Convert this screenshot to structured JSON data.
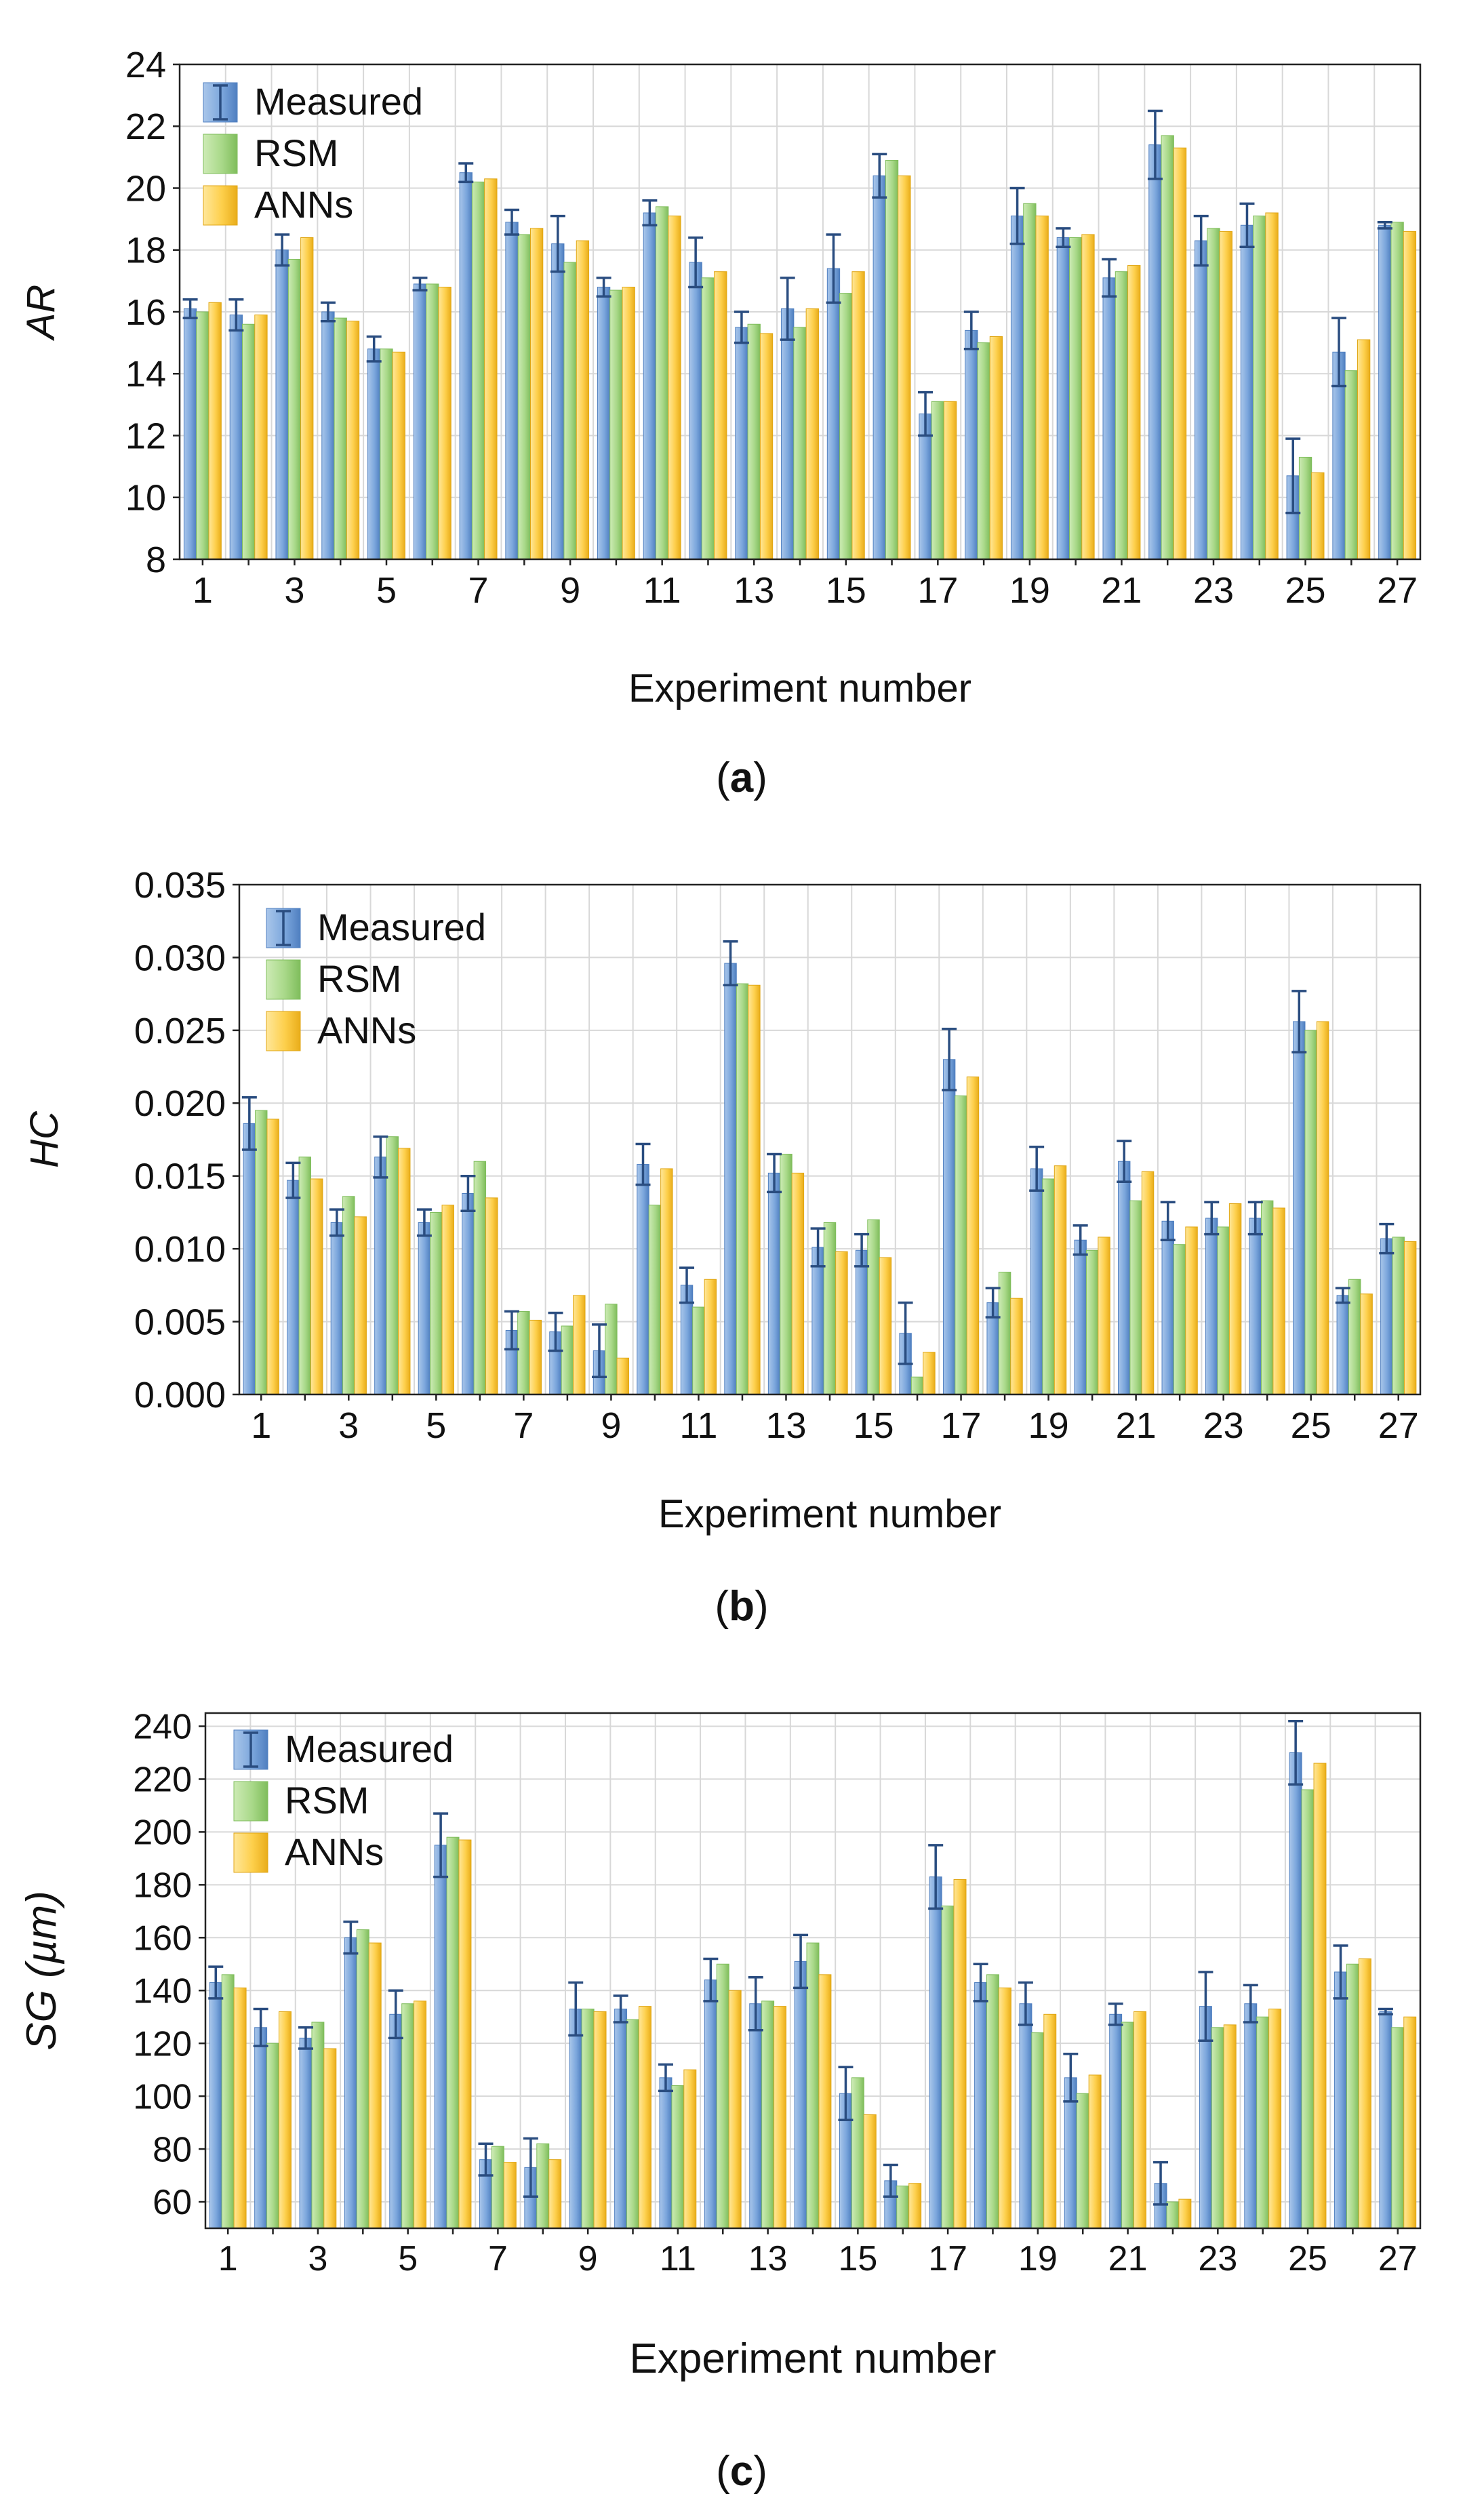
{
  "panels": [
    {
      "caption": "a",
      "chart_data": {
        "type": "bar",
        "title": "",
        "xlabel": "Experiment number",
        "ylabel": "AR",
        "ylim": [
          8,
          24
        ],
        "yticks": [
          8,
          10,
          12,
          14,
          16,
          18,
          20,
          22,
          24
        ],
        "ytick_labels": [
          "8",
          "10",
          "12",
          "14",
          "16",
          "18",
          "20",
          "22",
          "24"
        ],
        "grid": true,
        "legend": "top-left",
        "categories": [
          "1",
          "2",
          "3",
          "4",
          "5",
          "6",
          "7",
          "8",
          "9",
          "10",
          "11",
          "12",
          "13",
          "14",
          "15",
          "16",
          "17",
          "18",
          "19",
          "20",
          "21",
          "22",
          "23",
          "24",
          "25",
          "26",
          "27"
        ],
        "xtick_labels": [
          "1",
          "",
          "3",
          "",
          "5",
          "",
          "7",
          "",
          "9",
          "",
          "11",
          "",
          "13",
          "",
          "15",
          "",
          "17",
          "",
          "19",
          "",
          "21",
          "",
          "23",
          "",
          "25",
          "",
          "27"
        ],
        "series": [
          {
            "name": "Measured",
            "values": [
              16.1,
              15.9,
              18.0,
              16.0,
              14.8,
              16.9,
              20.5,
              18.9,
              18.2,
              16.8,
              19.2,
              17.6,
              15.5,
              16.1,
              17.4,
              20.4,
              12.7,
              15.4,
              19.1,
              18.4,
              17.1,
              21.4,
              18.3,
              18.8,
              10.7,
              14.7,
              18.8
            ],
            "errors": [
              0.3,
              0.5,
              0.5,
              0.3,
              0.4,
              0.2,
              0.3,
              0.4,
              0.9,
              0.3,
              0.4,
              0.8,
              0.5,
              1.0,
              1.1,
              0.7,
              0.7,
              0.6,
              0.9,
              0.3,
              0.6,
              1.1,
              0.8,
              0.7,
              1.2,
              1.1,
              0.1
            ]
          },
          {
            "name": "RSM",
            "values": [
              16.0,
              15.6,
              17.7,
              15.8,
              14.8,
              16.9,
              20.2,
              18.5,
              17.6,
              16.7,
              19.4,
              17.1,
              15.6,
              15.5,
              16.6,
              20.9,
              13.1,
              15.0,
              19.5,
              18.4,
              17.3,
              21.7,
              18.7,
              19.1,
              11.3,
              14.1,
              18.9
            ]
          },
          {
            "name": "ANNs",
            "values": [
              16.3,
              15.9,
              18.4,
              15.7,
              14.7,
              16.8,
              20.3,
              18.7,
              18.3,
              16.8,
              19.1,
              17.3,
              15.3,
              16.1,
              17.3,
              20.4,
              13.1,
              15.2,
              19.1,
              18.5,
              17.5,
              21.3,
              18.6,
              19.2,
              10.8,
              15.1,
              18.6
            ]
          }
        ]
      }
    },
    {
      "caption": "b",
      "chart_data": {
        "type": "bar",
        "title": "",
        "xlabel": "Experiment number",
        "ylabel": "HC",
        "ylim": [
          0,
          0.035
        ],
        "yticks": [
          0,
          0.005,
          0.01,
          0.015,
          0.02,
          0.025,
          0.03,
          0.035
        ],
        "ytick_labels": [
          "0.000",
          "0.005",
          "0.010",
          "0.015",
          "0.020",
          "0.025",
          "0.030",
          "0.035"
        ],
        "grid": true,
        "legend": "top-left",
        "categories": [
          "1",
          "2",
          "3",
          "4",
          "5",
          "6",
          "7",
          "8",
          "9",
          "10",
          "11",
          "12",
          "13",
          "14",
          "15",
          "16",
          "17",
          "18",
          "19",
          "20",
          "21",
          "22",
          "23",
          "24",
          "25",
          "26",
          "27"
        ],
        "xtick_labels": [
          "1",
          "",
          "3",
          "",
          "5",
          "",
          "7",
          "",
          "9",
          "",
          "11",
          "",
          "13",
          "",
          "15",
          "",
          "17",
          "",
          "19",
          "",
          "21",
          "",
          "23",
          "",
          "25",
          "",
          "27"
        ],
        "series": [
          {
            "name": "Measured",
            "values": [
              0.0186,
              0.0147,
              0.0118,
              0.0163,
              0.0118,
              0.0138,
              0.0044,
              0.0043,
              0.003,
              0.0158,
              0.0075,
              0.0296,
              0.0152,
              0.0101,
              0.0099,
              0.0042,
              0.023,
              0.0063,
              0.0155,
              0.0106,
              0.016,
              0.0119,
              0.0121,
              0.0121,
              0.0256,
              0.0068,
              0.0107
            ],
            "errors": [
              0.0018,
              0.0012,
              0.0009,
              0.0014,
              0.0009,
              0.0012,
              0.0013,
              0.0013,
              0.0018,
              0.0014,
              0.0012,
              0.0015,
              0.0013,
              0.0013,
              0.0011,
              0.0021,
              0.0021,
              0.001,
              0.0015,
              0.001,
              0.0014,
              0.0013,
              0.0011,
              0.0011,
              0.0021,
              0.0005,
              0.001
            ]
          },
          {
            "name": "RSM",
            "values": [
              0.0195,
              0.0163,
              0.0136,
              0.0177,
              0.0125,
              0.016,
              0.0057,
              0.0047,
              0.0062,
              0.013,
              0.006,
              0.0282,
              0.0165,
              0.0118,
              0.012,
              0.0012,
              0.0205,
              0.0084,
              0.0148,
              0.0099,
              0.0133,
              0.0103,
              0.0115,
              0.0133,
              0.025,
              0.0079,
              0.0108
            ]
          },
          {
            "name": "ANNs",
            "values": [
              0.0189,
              0.0148,
              0.0122,
              0.0169,
              0.013,
              0.0135,
              0.0051,
              0.0068,
              0.0025,
              0.0155,
              0.0079,
              0.0281,
              0.0152,
              0.0098,
              0.0094,
              0.0029,
              0.0218,
              0.0066,
              0.0157,
              0.0108,
              0.0153,
              0.0115,
              0.0131,
              0.0128,
              0.0256,
              0.0069,
              0.0105
            ]
          }
        ]
      }
    },
    {
      "caption": "c",
      "chart_data": {
        "type": "bar",
        "title": "",
        "xlabel": "Experiment number",
        "ylabel": "SG (µm)",
        "ylim": [
          50,
          245
        ],
        "yticks": [
          60,
          80,
          100,
          120,
          140,
          160,
          180,
          200,
          220,
          240
        ],
        "ytick_labels": [
          "60",
          "80",
          "100",
          "120",
          "140",
          "160",
          "180",
          "200",
          "220",
          "240"
        ],
        "grid": true,
        "legend": "top-left",
        "categories": [
          "1",
          "2",
          "3",
          "4",
          "5",
          "6",
          "7",
          "8",
          "9",
          "10",
          "11",
          "12",
          "13",
          "14",
          "15",
          "16",
          "17",
          "18",
          "19",
          "20",
          "21",
          "22",
          "23",
          "24",
          "25",
          "26",
          "27"
        ],
        "xtick_labels": [
          "1",
          "",
          "3",
          "",
          "5",
          "",
          "7",
          "",
          "9",
          "",
          "11",
          "",
          "13",
          "",
          "15",
          "",
          "17",
          "",
          "19",
          "",
          "21",
          "",
          "23",
          "",
          "25",
          "",
          "27"
        ],
        "series": [
          {
            "name": "Measured",
            "values": [
              143,
              126,
              122,
              160,
              131,
              195,
              76,
              73,
              133,
              133,
              107,
              144,
              135,
              151,
              101,
              68,
              183,
              143,
              135,
              107,
              131,
              67,
              134,
              135,
              230,
              147,
              132
            ],
            "errors": [
              6,
              7,
              4,
              6,
              9,
              12,
              6,
              11,
              10,
              5,
              5,
              8,
              10,
              10,
              10,
              6,
              12,
              7,
              8,
              9,
              4,
              8,
              13,
              7,
              12,
              10,
              1
            ]
          },
          {
            "name": "RSM",
            "values": [
              146,
              120,
              128,
              163,
              135,
              198,
              81,
              82,
              133,
              129,
              104,
              150,
              136,
              158,
              107,
              66,
              172,
              146,
              124,
              101,
              128,
              60,
              126,
              130,
              216,
              150,
              126
            ]
          },
          {
            "name": "ANNs",
            "values": [
              141,
              132,
              118,
              158,
              136,
              197,
              75,
              76,
              132,
              134,
              110,
              140,
              134,
              146,
              93,
              67,
              182,
              141,
              131,
              108,
              132,
              61,
              127,
              133,
              226,
              152,
              130
            ]
          }
        ]
      }
    }
  ],
  "series_colors": {
    "measured": "#7ba6dc",
    "rsm": "#a8d888",
    "anns": "#fdcf4b",
    "errorbar": "#2a4d80"
  }
}
